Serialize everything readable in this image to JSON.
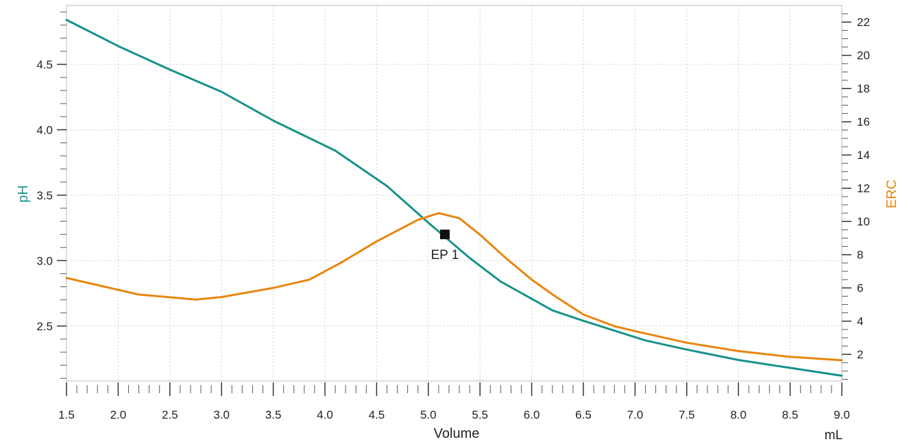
{
  "chart_data": {
    "type": "line",
    "xlabel": "Volume",
    "x_unit": "mL",
    "ylabel_left": "pH",
    "ylabel_right": "ERC",
    "xlim": [
      1.5,
      9.0
    ],
    "ylim_left": [
      2.08,
      4.95
    ],
    "ylim_right": [
      0.4,
      23.0
    ],
    "x_ticks": [
      "1.5",
      "2.0",
      "2.5",
      "3.0",
      "3.5",
      "4.0",
      "4.5",
      "5.0",
      "5.5",
      "6.0",
      "6.5",
      "7.0",
      "7.5",
      "8.0",
      "8.5",
      "9.0"
    ],
    "y_left_ticks": [
      "2.5",
      "3.0",
      "3.5",
      "4.0",
      "4.5"
    ],
    "y_right_ticks": [
      "2",
      "4",
      "6",
      "8",
      "10",
      "12",
      "14",
      "16",
      "18",
      "20",
      "22"
    ],
    "grid": true,
    "series": [
      {
        "name": "pH",
        "axis": "left",
        "color": "#16928a",
        "x": [
          1.5,
          2.0,
          2.5,
          3.0,
          3.5,
          4.1,
          4.6,
          5.0,
          5.4,
          5.7,
          6.2,
          6.5,
          6.9,
          7.1,
          7.5,
          8.0,
          8.5,
          9.0
        ],
        "y": [
          4.84,
          4.64,
          4.46,
          4.29,
          4.07,
          3.84,
          3.57,
          3.29,
          3.02,
          2.84,
          2.62,
          2.54,
          2.44,
          2.39,
          2.32,
          2.24,
          2.18,
          2.12
        ]
      },
      {
        "name": "ERC",
        "axis": "right",
        "color": "#e8850c",
        "x": [
          1.5,
          2.2,
          2.75,
          3.0,
          3.5,
          3.85,
          4.15,
          4.5,
          4.9,
          5.1,
          5.3,
          5.5,
          5.75,
          6.0,
          6.25,
          6.5,
          6.8,
          7.0,
          7.5,
          8.0,
          8.5,
          9.0
        ],
        "y": [
          6.6,
          5.6,
          5.3,
          5.45,
          6.0,
          6.5,
          7.5,
          8.8,
          10.1,
          10.5,
          10.2,
          9.2,
          7.8,
          6.5,
          5.4,
          4.4,
          3.7,
          3.4,
          2.7,
          2.2,
          1.85,
          1.65
        ]
      }
    ],
    "annotations": [
      {
        "label": "EP 1",
        "x": 5.16,
        "y_left": 3.2
      }
    ]
  }
}
